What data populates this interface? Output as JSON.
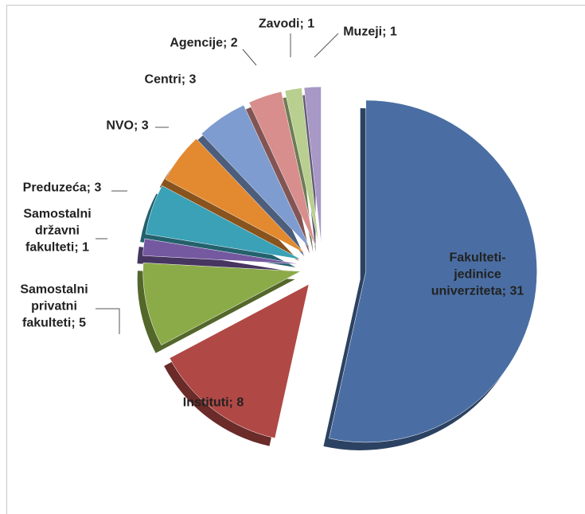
{
  "chart_data": {
    "type": "pie",
    "values": [
      31,
      8,
      5,
      1,
      3,
      3,
      3,
      2,
      1,
      1
    ],
    "value_labels": [
      "Fakulteti-jedinice univerziteta; 31",
      "Instituti; 8",
      "Samostalni privatni fakulteti; 5",
      "Samostalni državni fakulteti; 1",
      "Preduzeća; 3",
      "NVO; 3",
      "Centri; 3",
      "Agencije; 2",
      "Zavodi; 1",
      "Muzeji; 1"
    ],
    "colors": [
      "#4a6ea3",
      "#b04845",
      "#8bab48",
      "#7458a0",
      "#3aa1b6",
      "#e38a30",
      "#7e9ccf",
      "#d88e8c",
      "#b8cf8f",
      "#a798c6"
    ]
  }
}
